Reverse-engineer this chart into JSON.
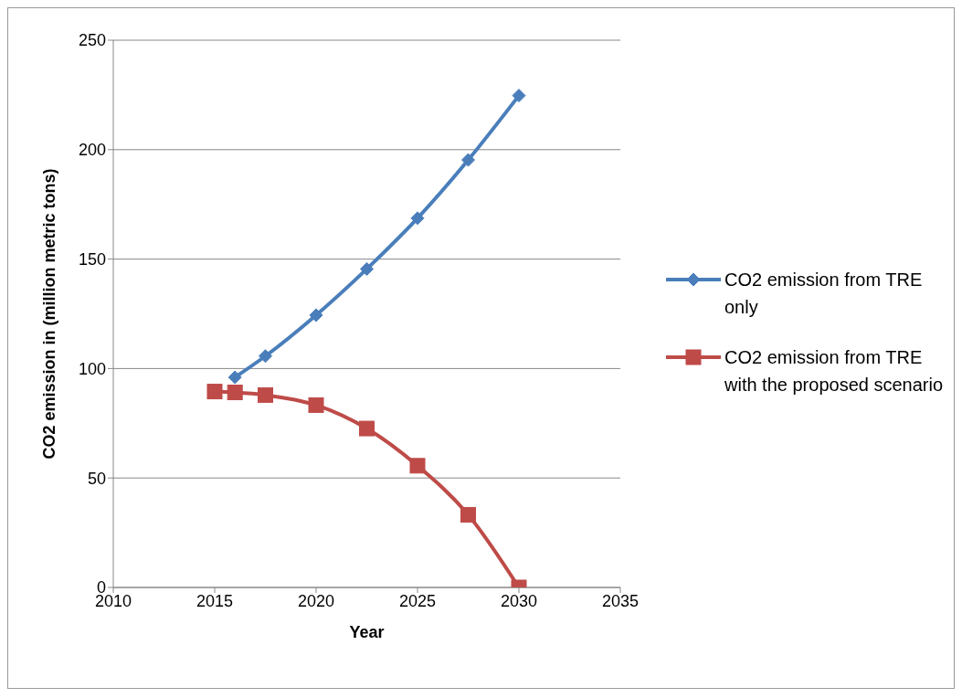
{
  "chart_data": {
    "type": "line",
    "xlabel": "Year",
    "ylabel": "CO2 emission in (million metric tons)",
    "xlim": [
      2010,
      2035
    ],
    "xticks": [
      2010,
      2015,
      2020,
      2025,
      2030,
      2035
    ],
    "ylim": [
      0,
      250
    ],
    "yticks": [
      0,
      50,
      100,
      150,
      200,
      250
    ],
    "grid": "y",
    "legend": "right",
    "line_style": "solid",
    "series": [
      {
        "name": "CO2 emission from TRE only",
        "color": "#4a7ebb",
        "marker": "diamond",
        "x": [
          2016,
          2017.5,
          2020,
          2022.5,
          2025,
          2027.5,
          2030
        ],
        "values": [
          96,
          105.7,
          124.4,
          145.5,
          168.7,
          195.3,
          224.7
        ]
      },
      {
        "name": "CO2 emission from TRE with the proposed scenario",
        "color": "#be4b48",
        "marker": "square",
        "x": [
          2015,
          2016,
          2017.5,
          2020,
          2022.5,
          2025,
          2027.5,
          2030
        ],
        "values": [
          89.5,
          89.1,
          87.9,
          83.3,
          72.6,
          55.6,
          33.2,
          0
        ]
      }
    ]
  }
}
